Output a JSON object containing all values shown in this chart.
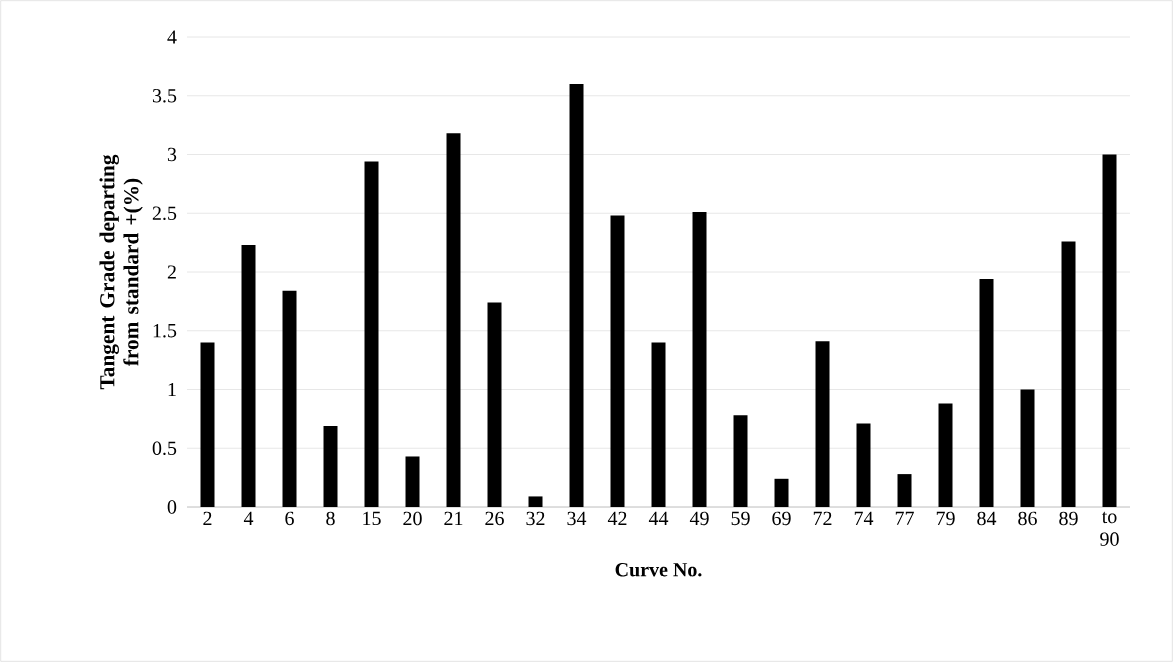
{
  "chart_data": {
    "type": "bar",
    "xlabel": "Curve No.",
    "ylabel": "Tangent Grade departing from standard +(%)",
    "categories": [
      "2",
      "4",
      "6",
      "8",
      "15",
      "20",
      "21",
      "26",
      "32",
      "34",
      "42",
      "44",
      "49",
      "59",
      "69",
      "72",
      "74",
      "77",
      "79",
      "84",
      "86",
      "89",
      "to 90"
    ],
    "values": [
      1.4,
      2.23,
      1.84,
      0.69,
      2.94,
      0.43,
      3.18,
      1.74,
      0.09,
      3.6,
      2.48,
      1.4,
      2.51,
      0.78,
      0.24,
      1.41,
      0.71,
      0.28,
      0.88,
      1.94,
      1.0,
      2.26,
      3.0
    ],
    "color": "#000000",
    "ylim": [
      0,
      4
    ],
    "yticks": [
      0,
      0.5,
      1,
      1.5,
      2,
      2.5,
      3,
      3.5,
      4
    ],
    "grid": "y"
  }
}
